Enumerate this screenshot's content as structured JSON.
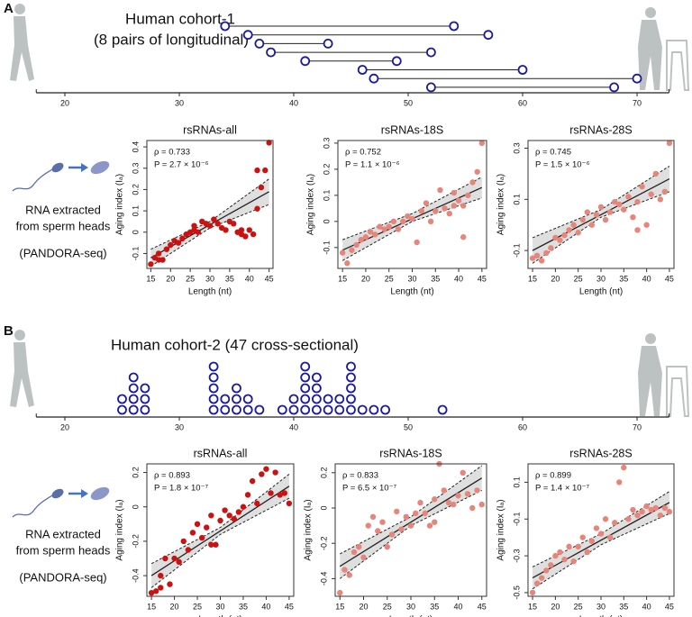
{
  "panels": [
    {
      "label": "A",
      "cohort_title": "Human cohort-1",
      "cohort_subtitle": "(8 pairs of longitudinal)",
      "method": [
        "RNA extracted",
        "from sperm heads",
        "(PANDORA-seq)"
      ]
    },
    {
      "label": "B",
      "cohort_title": "Human cohort-2 (47 cross-sectional)",
      "method": [
        "RNA extracted",
        "from sperm heads",
        "(PANDORA-seq)"
      ]
    }
  ],
  "chart_data": [
    {
      "type": "dumbbell",
      "start": [
        34,
        36,
        37,
        38,
        41,
        46,
        47,
        52
      ],
      "end": [
        54,
        57,
        43,
        52,
        49,
        60,
        70,
        68
      ],
      "color": "#1a1a9c",
      "xlim": [
        17.5,
        72.8
      ],
      "xticks": [
        20,
        30,
        40,
        50,
        60,
        70
      ]
    },
    {
      "type": "scatter",
      "title": "rsRNAs-all",
      "x_label": "Length (nt)",
      "y_label": "Aging index (Iₐ)",
      "rho": "ρ = 0.733",
      "p_value": "P = 2.7 × 10⁻⁶",
      "color": "#cc1111",
      "x": [
        15,
        16,
        17,
        17,
        18,
        19,
        20,
        21,
        22,
        23,
        24,
        25,
        26,
        26,
        27,
        28,
        29,
        30,
        31,
        32,
        33,
        34,
        35,
        36,
        37,
        38,
        38,
        39,
        40,
        41,
        42,
        42,
        43,
        44,
        45
      ],
      "values": [
        -0.15,
        -0.12,
        -0.13,
        -0.1,
        -0.13,
        -0.08,
        -0.06,
        -0.04,
        -0.05,
        -0.03,
        -0.01,
        0.0,
        0.01,
        0.03,
        0.0,
        0.05,
        0.04,
        0.03,
        0.06,
        0.04,
        0.02,
        0.01,
        0.05,
        0.04,
        0.0,
        -0.01,
        0.01,
        -0.02,
        0.01,
        -0.01,
        0.29,
        0.11,
        0.21,
        0.29,
        0.42
      ],
      "fit": {
        "x": [
          15,
          45
        ],
        "y": [
          -0.12,
          0.19
        ]
      },
      "ci": {
        "x": [
          15,
          30,
          45
        ],
        "lower": [
          -0.16,
          0.02,
          0.13
        ],
        "upper": [
          -0.08,
          0.05,
          0.25
        ]
      },
      "xlim": [
        14,
        46
      ],
      "xticks": [
        15,
        20,
        25,
        30,
        35,
        40,
        45
      ],
      "ylim": [
        -0.17,
        0.43
      ],
      "yticks": [
        -0.1,
        0,
        0.1,
        0.2,
        0.3,
        0.4
      ]
    },
    {
      "type": "scatter",
      "title": "rsRNAs-18S",
      "x_label": "Length (nt)",
      "y_label": "Aging index (Iₐ)",
      "rho": "ρ = 0.752",
      "p_value": "P = 1.1 × 10⁻⁶",
      "color": "#e8857a",
      "x": [
        15,
        16,
        17,
        18,
        19,
        20,
        21,
        22,
        23,
        24,
        25,
        26,
        27,
        28,
        29,
        30,
        31,
        32,
        33,
        34,
        35,
        36,
        37,
        38,
        39,
        40,
        41,
        41,
        42,
        43,
        44,
        45,
        39
      ],
      "values": [
        -0.12,
        -0.16,
        -0.11,
        -0.09,
        -0.07,
        -0.06,
        -0.04,
        -0.05,
        -0.02,
        -0.03,
        -0.02,
        0.0,
        -0.03,
        0.0,
        0.02,
        0.01,
        -0.08,
        0.04,
        0.07,
        0.0,
        0.04,
        0.12,
        0.05,
        0.03,
        0.06,
        0.08,
        -0.06,
        0.06,
        0.1,
        0.15,
        0.19,
        0.3,
        0.11
      ],
      "fit": {
        "x": [
          15,
          45
        ],
        "y": [
          -0.11,
          0.13
        ]
      },
      "ci": {
        "x": [
          15,
          30,
          45
        ],
        "lower": [
          -0.15,
          0.0,
          0.09
        ],
        "upper": [
          -0.07,
          0.03,
          0.17
        ]
      },
      "xlim": [
        14,
        46
      ],
      "xticks": [
        15,
        20,
        25,
        30,
        35,
        40,
        45
      ],
      "ylim": [
        -0.18,
        0.31
      ],
      "yticks": [
        -0.1,
        0,
        0.1,
        0.2,
        0.3
      ]
    },
    {
      "type": "scatter",
      "title": "rsRNAs-28S",
      "x_label": "Length (nt)",
      "y_label": "Aging index (Iₐ)",
      "rho": "ρ = 0.745",
      "p_value": "P = 1.5 × 10⁻⁶",
      "color": "#e8857a",
      "x": [
        15,
        16,
        17,
        18,
        19,
        20,
        21,
        22,
        23,
        24,
        25,
        26,
        27,
        28,
        29,
        30,
        31,
        32,
        33,
        34,
        35,
        36,
        37,
        38,
        38,
        39,
        40,
        41,
        42,
        43,
        44,
        45
      ],
      "values": [
        -0.13,
        -0.12,
        -0.14,
        -0.11,
        -0.09,
        -0.05,
        -0.06,
        -0.04,
        -0.02,
        0.0,
        -0.03,
        0.02,
        0.05,
        0.0,
        0.04,
        0.07,
        0.02,
        0.05,
        0.09,
        0.08,
        0.06,
        0.11,
        0.03,
        0.09,
        -0.02,
        0.15,
        0.0,
        0.12,
        0.2,
        0.1,
        0.13,
        0.32
      ],
      "fit": {
        "x": [
          15,
          45
        ],
        "y": [
          -0.1,
          0.18
        ]
      },
      "ci": {
        "x": [
          15,
          30,
          45
        ],
        "lower": [
          -0.15,
          0.03,
          0.13
        ],
        "upper": [
          -0.05,
          0.06,
          0.23
        ]
      },
      "xlim": [
        14,
        46
      ],
      "xticks": [
        15,
        20,
        25,
        30,
        35,
        40,
        45
      ],
      "ylim": [
        -0.17,
        0.33
      ],
      "yticks": [
        -0.1,
        0.1,
        0.3
      ]
    },
    {
      "type": "dotplot",
      "x": [
        25,
        26,
        27,
        33,
        34,
        35,
        36,
        37,
        39,
        40,
        41,
        42,
        43,
        44,
        45,
        46,
        47,
        48,
        53
      ],
      "counts": [
        2,
        4,
        3,
        5,
        2,
        3,
        2,
        1,
        1,
        2,
        5,
        4,
        2,
        2,
        5,
        1,
        1,
        1,
        1
      ],
      "color": "#1a1a9c",
      "xlim": [
        17.5,
        72.8
      ],
      "xticks": [
        20,
        30,
        40,
        50,
        60,
        70
      ]
    },
    {
      "type": "scatter",
      "title": "rsRNAs-all",
      "x_label": "Length (nt)",
      "y_label": "Aging index (Iₐ)",
      "rho": "ρ = 0.893",
      "p_value": "P = 1.8 × 10⁻⁷",
      "color": "#cc1111",
      "x": [
        15,
        16,
        17,
        17,
        18,
        19,
        20,
        21,
        22,
        23,
        24,
        25,
        26,
        27,
        28,
        28,
        29,
        30,
        31,
        32,
        33,
        34,
        35,
        36,
        37,
        38,
        39,
        40,
        41,
        42,
        43,
        44,
        45
      ],
      "values": [
        -0.5,
        -0.49,
        -0.47,
        -0.4,
        -0.3,
        -0.45,
        -0.3,
        -0.32,
        -0.2,
        -0.25,
        -0.15,
        -0.1,
        -0.18,
        -0.12,
        -0.22,
        -0.05,
        -0.22,
        -0.08,
        -0.02,
        -0.05,
        -0.07,
        -0.03,
        0.0,
        0.07,
        0.15,
        0.02,
        0.19,
        0.22,
        0.08,
        0.2,
        0.07,
        0.08,
        0.02
      ],
      "fit": {
        "x": [
          15,
          45
        ],
        "y": [
          -0.4,
          0.12
        ]
      },
      "ci": {
        "x": [
          15,
          30,
          45
        ],
        "lower": [
          -0.47,
          -0.16,
          0.05
        ],
        "upper": [
          -0.33,
          -0.12,
          0.19
        ]
      },
      "xlim": [
        14,
        46
      ],
      "xticks": [
        15,
        20,
        25,
        30,
        35,
        40,
        45
      ],
      "ylim": [
        -0.52,
        0.25
      ],
      "yticks": [
        -0.4,
        -0.2,
        0,
        0.2
      ]
    },
    {
      "type": "scatter",
      "title": "rsRNAs-18S",
      "x_label": "Length (nt)",
      "y_label": "Aging index (Iₐ)",
      "rho": "ρ = 0.833",
      "p_value": "P = 6.5 × 10⁻⁷",
      "color": "#e8857a",
      "x": [
        15,
        16,
        17,
        18,
        19,
        20,
        21,
        22,
        23,
        24,
        25,
        26,
        27,
        28,
        29,
        30,
        31,
        32,
        33,
        34,
        35,
        36,
        37,
        38,
        39,
        40,
        41,
        42,
        43,
        44,
        45,
        35
      ],
      "values": [
        -0.48,
        -0.35,
        -0.38,
        -0.25,
        -0.22,
        -0.28,
        -0.1,
        -0.05,
        -0.13,
        -0.08,
        -0.22,
        -0.15,
        -0.02,
        -0.12,
        -0.05,
        -0.1,
        -0.03,
        0.03,
        -0.03,
        -0.1,
        0.05,
        0.25,
        0.1,
        0.03,
        0.02,
        0.07,
        0.2,
        0.08,
        0.0,
        0.1,
        0.02,
        -0.08
      ],
      "fit": {
        "x": [
          15,
          45
        ],
        "y": [
          -0.33,
          0.17
        ]
      },
      "ci": {
        "x": [
          15,
          30,
          45
        ],
        "lower": [
          -0.4,
          -0.1,
          0.1
        ],
        "upper": [
          -0.26,
          -0.05,
          0.24
        ]
      },
      "xlim": [
        14,
        46
      ],
      "xticks": [
        15,
        20,
        25,
        30,
        35,
        40,
        45
      ],
      "ylim": [
        -0.5,
        0.25
      ],
      "yticks": [
        -0.4,
        -0.2,
        0,
        0.2
      ]
    },
    {
      "type": "scatter",
      "title": "rsRNAs-28S",
      "x_label": "Length (nt)",
      "y_label": "Aging index (Iₐ)",
      "rho": "ρ = 0.899",
      "p_value": "P = 1.4 × 10⁻⁷",
      "color": "#e8857a",
      "x": [
        15,
        16,
        17,
        18,
        19,
        20,
        21,
        22,
        23,
        24,
        25,
        26,
        27,
        28,
        29,
        30,
        31,
        32,
        33,
        34,
        35,
        36,
        37,
        38,
        39,
        40,
        41,
        42,
        43,
        44,
        45
      ],
      "values": [
        -0.5,
        -0.45,
        -0.42,
        -0.38,
        -0.35,
        -0.3,
        -0.28,
        -0.32,
        -0.25,
        -0.33,
        -0.25,
        -0.2,
        -0.28,
        -0.22,
        -0.15,
        -0.18,
        -0.1,
        -0.2,
        -0.12,
        0.1,
        0.18,
        -0.1,
        -0.05,
        -0.08,
        -0.06,
        -0.03,
        -0.05,
        -0.04,
        -0.08,
        -0.04,
        -0.06
      ],
      "fit": {
        "x": [
          15,
          45
        ],
        "y": [
          -0.42,
          -0.01
        ]
      },
      "ci": {
        "x": [
          15,
          30,
          45
        ],
        "lower": [
          -0.48,
          -0.24,
          -0.07
        ],
        "upper": [
          -0.36,
          -0.18,
          0.05
        ]
      },
      "xlim": [
        14,
        46
      ],
      "xticks": [
        15,
        20,
        25,
        30,
        35,
        40,
        45
      ],
      "ylim": [
        -0.52,
        0.2
      ],
      "yticks": [
        -0.5,
        -0.3,
        -0.1,
        0.1
      ]
    }
  ]
}
